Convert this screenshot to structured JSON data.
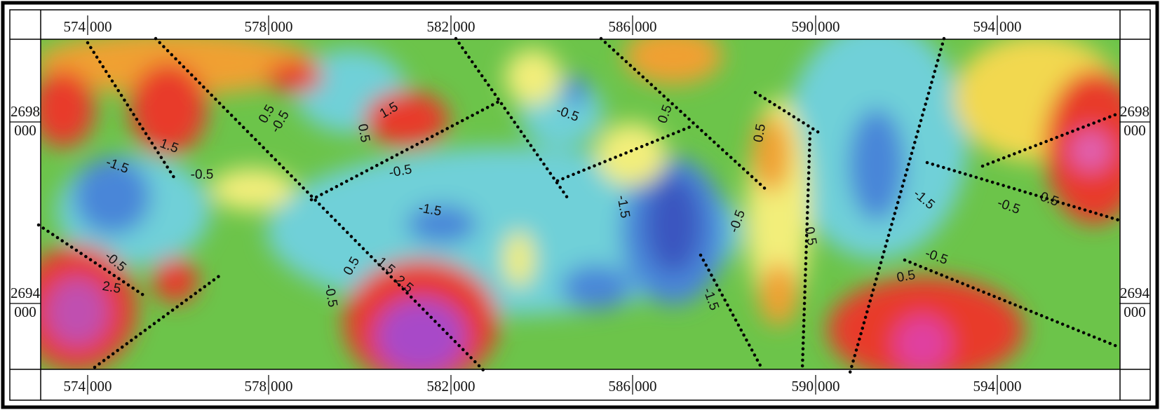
{
  "top_axis": {
    "labels": [
      {
        "left": "574",
        "right": "000"
      },
      {
        "left": "578",
        "right": "000"
      },
      {
        "left": "582",
        "right": "000"
      },
      {
        "left": "586",
        "right": "000"
      },
      {
        "left": "590",
        "right": "000"
      },
      {
        "left": "594",
        "right": "000"
      }
    ]
  },
  "bottom_axis": {
    "labels": [
      {
        "left": "574",
        "right": "000"
      },
      {
        "left": "578",
        "right": "000"
      },
      {
        "left": "582",
        "right": "000"
      },
      {
        "left": "586",
        "right": "000"
      },
      {
        "left": "590",
        "right": "000"
      },
      {
        "left": "594",
        "right": "000"
      }
    ]
  },
  "left_axis": {
    "labels": [
      {
        "top": "2698",
        "bottom": "000"
      },
      {
        "top": "2694",
        "bottom": "000"
      }
    ]
  },
  "right_axis": {
    "labels": [
      {
        "top": "2698",
        "bottom": "000"
      },
      {
        "top": "2694",
        "bottom": "000"
      }
    ]
  },
  "contour_labels": [
    "-1.5",
    "1.5",
    "-0.5",
    "0.5",
    "-0.5",
    "1.5",
    "0.5",
    "-0.5",
    "-1.5",
    "-0.5",
    "0.5",
    "-1.5",
    "0.5",
    "-0.5",
    "0.5",
    "-1.5",
    "-1.5",
    "-0.5",
    "0.5",
    "-0.5",
    "0.5",
    "-0.5",
    "0.5",
    "1.5",
    "2.5",
    "-0.5",
    "2.5"
  ]
}
